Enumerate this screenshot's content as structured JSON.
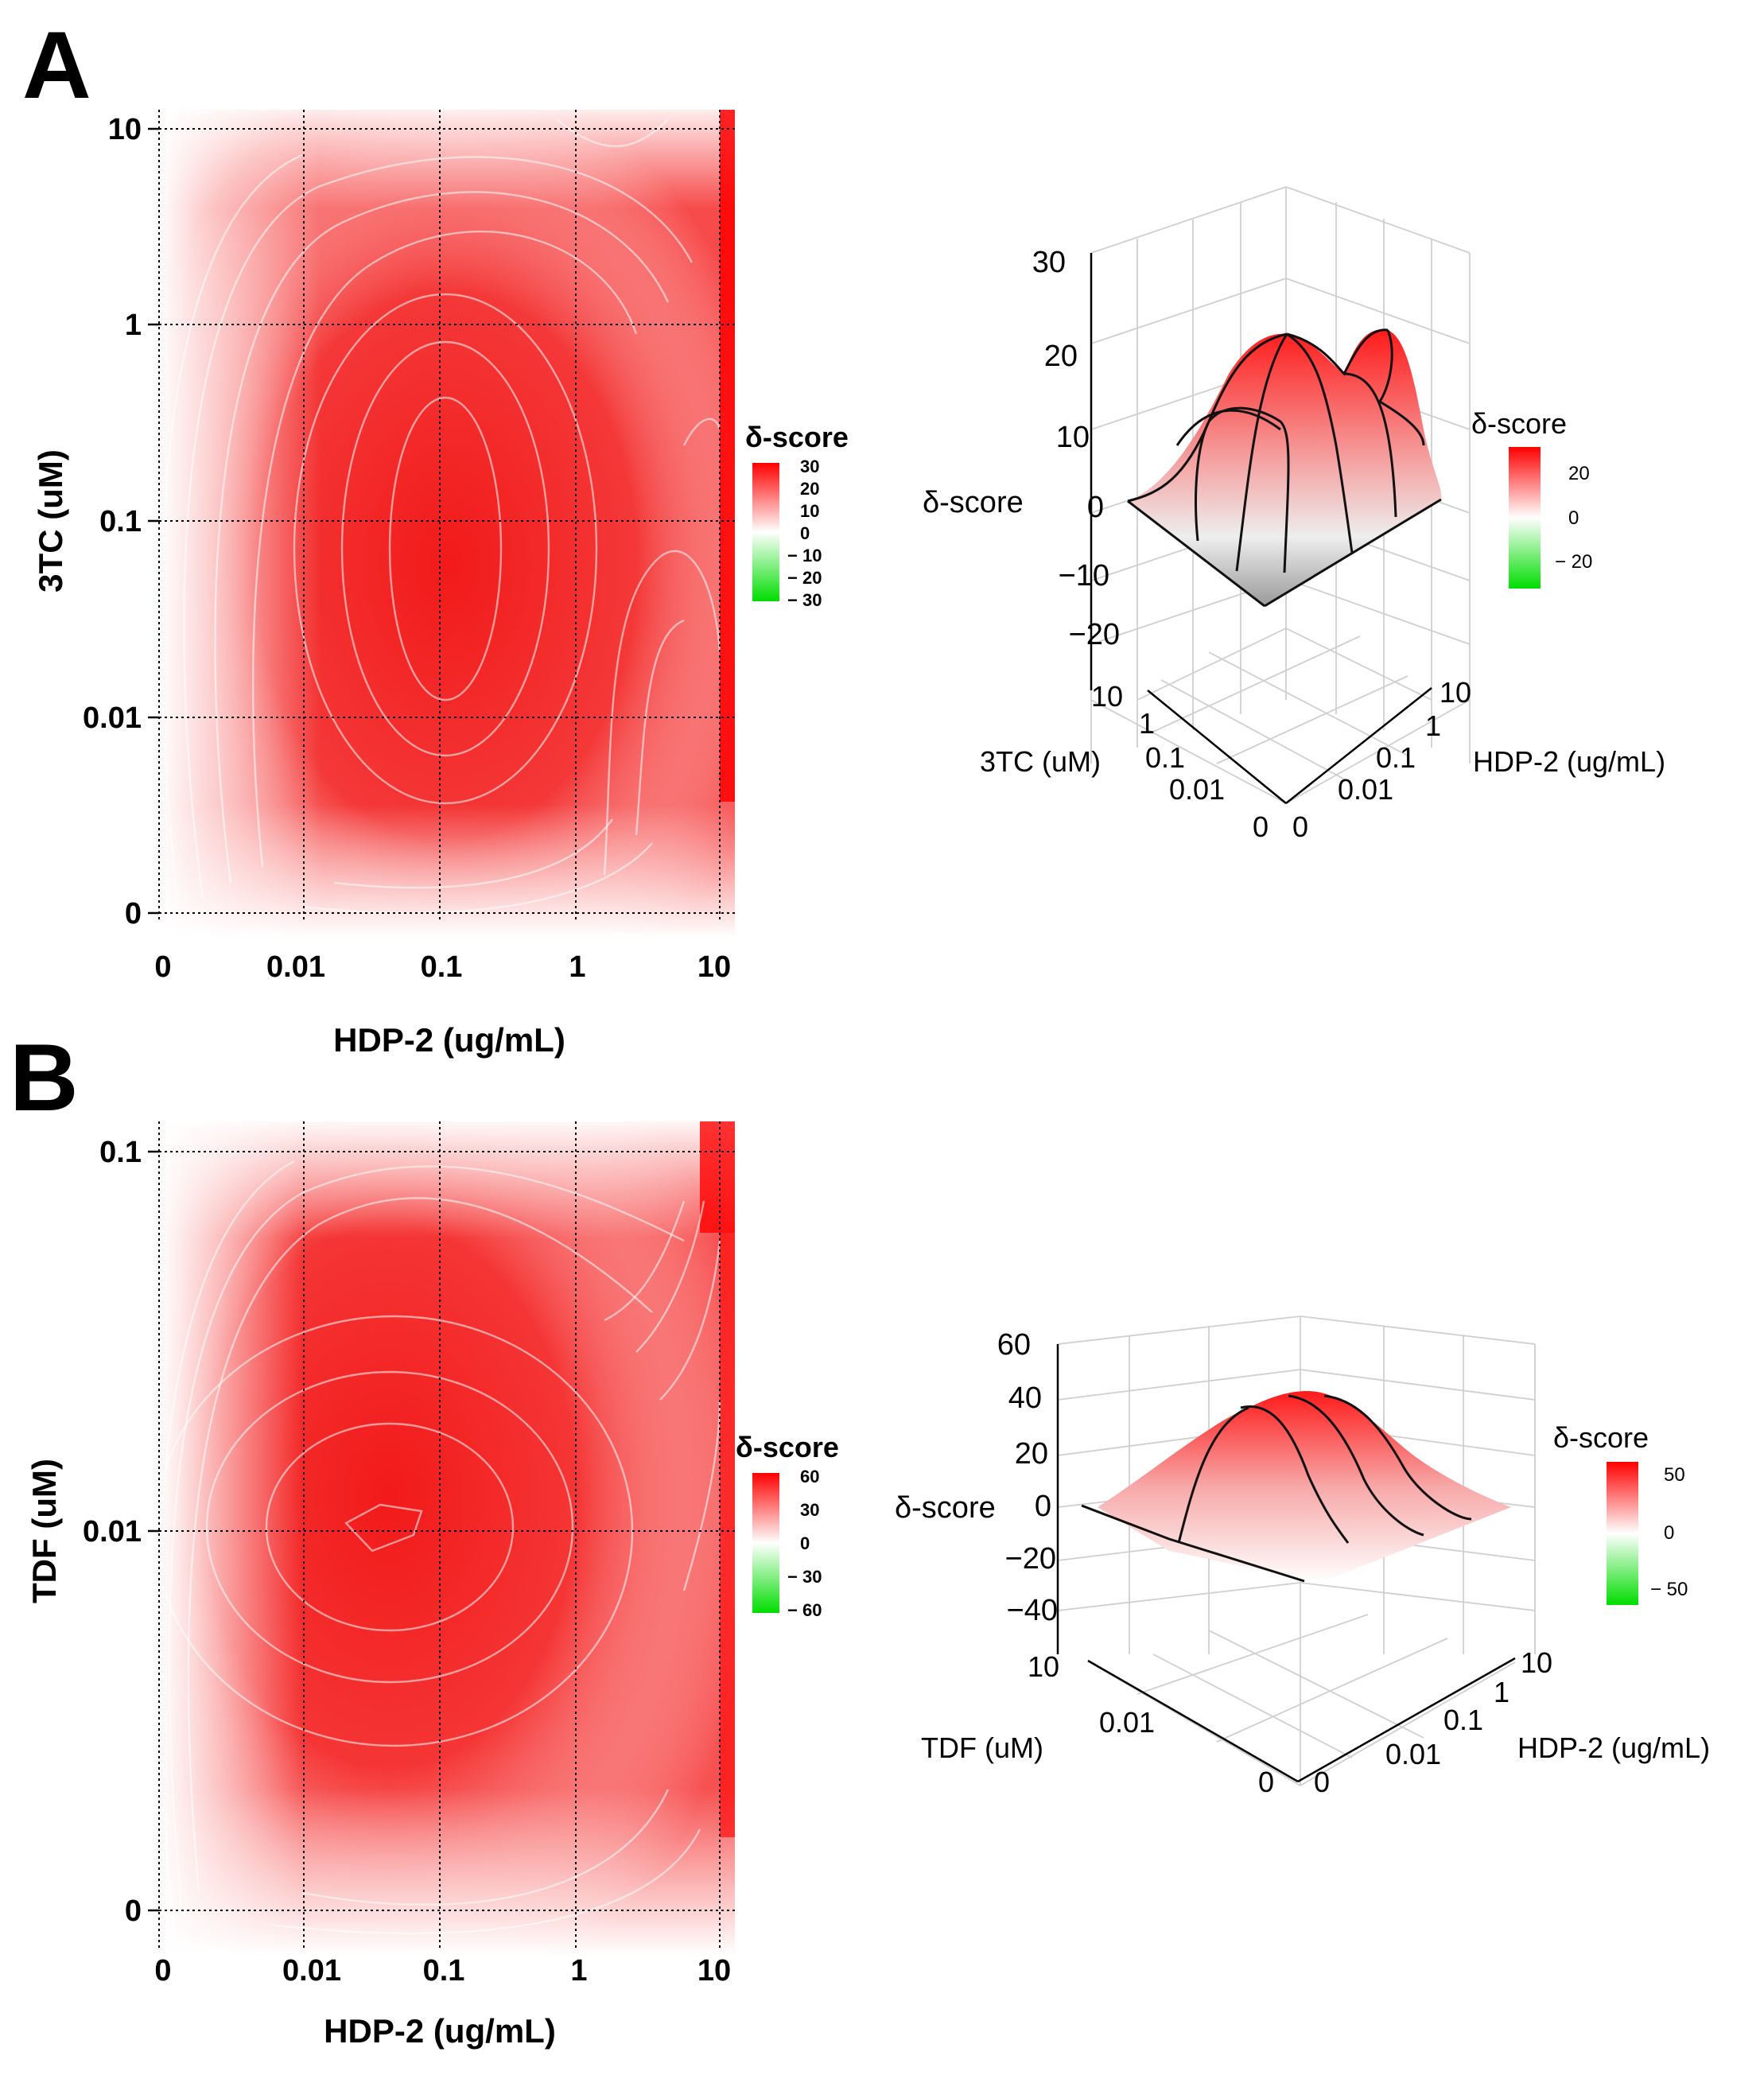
{
  "panels": [
    {
      "letter": "A",
      "heatmap": {
        "x_label": "HDP-2 (ug/mL)",
        "y_label": "3TC (uM)",
        "x_ticks": [
          "0",
          "0.01",
          "0.1",
          "1",
          "10"
        ],
        "y_ticks": [
          "0",
          "0.01",
          "0.1",
          "1",
          "10"
        ],
        "legend_title": "δ-score",
        "legend_ticks": [
          "30",
          "20",
          "10",
          "0",
          "− 10",
          "− 20",
          "− 30"
        ]
      },
      "surface": {
        "z_label": "δ-score",
        "z_ticks": [
          "30",
          "20",
          "10",
          "0",
          "−10",
          "−20"
        ],
        "left_axis_label": "3TC (uM)",
        "left_axis_ticks": [
          "10",
          "1",
          "0.1",
          "0.01",
          "0"
        ],
        "right_axis_label": "HDP-2 (ug/mL)",
        "right_axis_ticks": [
          "10",
          "1",
          "0.1",
          "0.01",
          "0"
        ],
        "legend_title": "δ-score",
        "legend_ticks": [
          "20",
          "0",
          "− 20"
        ]
      }
    },
    {
      "letter": "B",
      "heatmap": {
        "x_label": "HDP-2 (ug/mL)",
        "y_label": "TDF (uM)",
        "x_ticks": [
          "0",
          "0.01",
          "0.1",
          "1",
          "10"
        ],
        "y_ticks": [
          "0",
          "0.01",
          "0.1"
        ],
        "legend_title": "δ-score",
        "legend_ticks": [
          "60",
          "30",
          "0",
          "− 30",
          "− 60"
        ]
      },
      "surface": {
        "z_label": "δ-score",
        "z_ticks": [
          "60",
          "40",
          "20",
          "0",
          "−20",
          "−40"
        ],
        "left_axis_label": "TDF (uM)",
        "left_axis_ticks": [
          "10",
          "0.01",
          "0"
        ],
        "right_axis_label": "HDP-2 (ug/mL)",
        "right_axis_ticks": [
          "10",
          "1",
          "0.1",
          "0.01",
          "0"
        ],
        "legend_title": "δ-score",
        "legend_ticks": [
          "50",
          "0",
          "− 50"
        ]
      }
    }
  ],
  "chart_data": [
    {
      "panel": "A",
      "type": "heatmap",
      "title": "",
      "xlabel": "HDP-2 (ug/mL)",
      "ylabel": "3TC (uM)",
      "x": [
        "0",
        "0.01",
        "0.1",
        "1",
        "10"
      ],
      "y": [
        "0",
        "0.01",
        "0.1",
        "1",
        "10"
      ],
      "color_scale": {
        "min": -30,
        "max": 30,
        "low": "#00dd00",
        "mid": "#ffffff",
        "high": "#ff0000"
      },
      "peak": {
        "x": "0.1",
        "y": "0.05",
        "value": 25
      }
    },
    {
      "panel": "A",
      "type": "surface",
      "zlabel": "δ-score",
      "zlim": [
        -20,
        30
      ],
      "color_scale": {
        "min": -20,
        "max": 20
      },
      "peak_value": 25
    },
    {
      "panel": "B",
      "type": "heatmap",
      "title": "",
      "xlabel": "HDP-2 (ug/mL)",
      "ylabel": "TDF (uM)",
      "x": [
        "0",
        "0.01",
        "0.1",
        "1",
        "10"
      ],
      "y": [
        "0",
        "0.01",
        "0.1"
      ],
      "color_scale": {
        "min": -60,
        "max": 60,
        "low": "#00dd00",
        "mid": "#ffffff",
        "high": "#ff0000"
      },
      "peak": {
        "x": "0.03",
        "y": "0.012",
        "value": 45
      }
    },
    {
      "panel": "B",
      "type": "surface",
      "zlabel": "δ-score",
      "zlim": [
        -40,
        60
      ],
      "color_scale": {
        "min": -50,
        "max": 50
      },
      "peak_value": 45
    }
  ]
}
